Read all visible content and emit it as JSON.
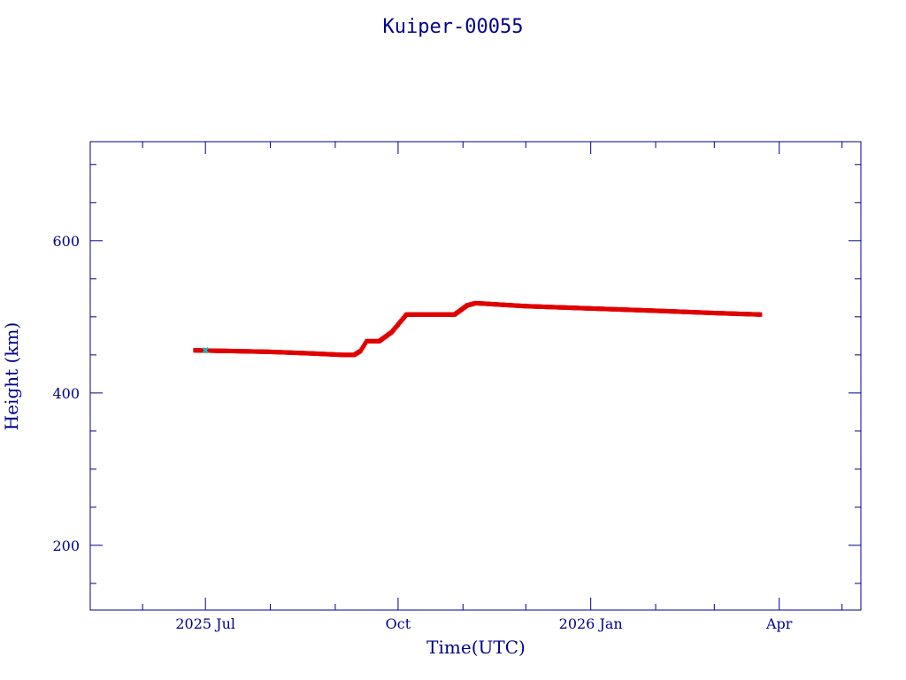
{
  "chart_data": {
    "type": "scatter",
    "title": "Kuiper-00055",
    "xlabel": "Time(UTC)",
    "ylabel": "Height (km)",
    "x_ticks": [
      {
        "date": "2025-07-01",
        "label": "2025 Jul"
      },
      {
        "date": "2025-10-01",
        "label": "Oct"
      },
      {
        "date": "2026-01-01",
        "label": "2026 Jan"
      },
      {
        "date": "2026-04-01",
        "label": "Apr"
      }
    ],
    "xlim": [
      "2025-05-07",
      "2026-05-10"
    ],
    "ylim": [
      115,
      730
    ],
    "y_ticks": [
      200,
      400,
      600
    ],
    "grid": false,
    "colors": {
      "frame": "#00008b",
      "series": "#e00000",
      "marker": "#00c8c8"
    },
    "series": [
      {
        "points": [
          [
            "2025-06-26",
            456
          ],
          [
            "2025-07-15",
            455
          ],
          [
            "2025-08-01",
            454
          ],
          [
            "2025-08-20",
            452
          ],
          [
            "2025-09-05",
            450
          ],
          [
            "2025-09-10",
            450
          ],
          [
            "2025-09-13",
            455
          ],
          [
            "2025-09-16",
            468
          ],
          [
            "2025-09-22",
            468
          ],
          [
            "2025-09-28",
            480
          ],
          [
            "2025-10-05",
            503
          ],
          [
            "2025-10-20",
            503
          ],
          [
            "2025-10-28",
            503
          ],
          [
            "2025-11-03",
            515
          ],
          [
            "2025-11-07",
            518
          ],
          [
            "2025-12-01",
            514
          ],
          [
            "2026-01-01",
            511
          ],
          [
            "2026-02-01",
            508
          ],
          [
            "2026-03-01",
            505
          ],
          [
            "2026-03-23",
            503
          ]
        ]
      }
    ],
    "highlight": {
      "date": "2025-07-01",
      "value": 456
    }
  }
}
